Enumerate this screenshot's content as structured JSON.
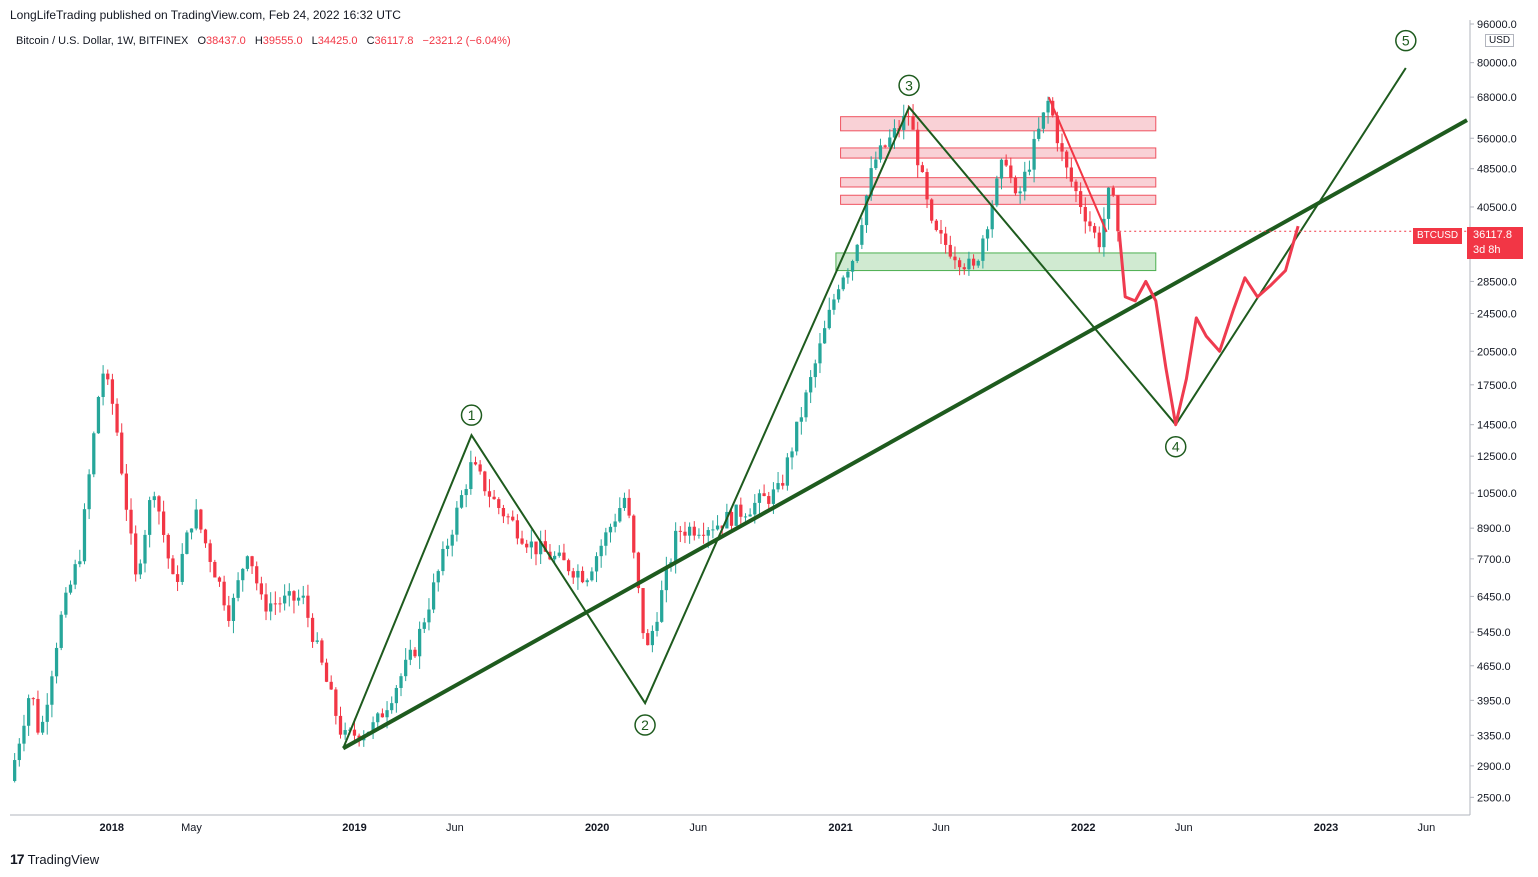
{
  "header": {
    "publisher": "LongLifeTrading published on TradingView.com, Feb 24, 2022 16:32 UTC",
    "symbol": "Bitcoin / U.S. Dollar, 1W, BITFINEX",
    "ohlc": {
      "O": "38437.0",
      "H": "39555.0",
      "L": "34425.0",
      "C": "36117.8"
    },
    "change": "−2321.2 (−6.04%)"
  },
  "footer": {
    "brand": "TradingView"
  },
  "badges": {
    "symbol": "BTCUSD",
    "price": "36117.8",
    "countdown": "3d 8h",
    "currency": "USD"
  },
  "colors": {
    "up": "#26a69a",
    "down": "#f23645",
    "wave": "#1e5b1e",
    "resist": "#f8c9cf",
    "support": "#c8e6c9",
    "projection": "#ef3b4f"
  },
  "chart_data": {
    "type": "candlestick",
    "title": "Bitcoin / U.S. Dollar, 1W, BITFINEX",
    "scale": "log",
    "ylim": [
      2300,
      96000
    ],
    "y_ticks": [
      96000,
      80000,
      68000,
      56000,
      48500,
      40500,
      28500,
      24500,
      20500,
      17500,
      14500,
      12500,
      10500,
      8900,
      7700,
      6450,
      5450,
      4650,
      3950,
      3350,
      2900,
      2500
    ],
    "y_tick_labels": [
      "96000.0",
      "80000.0",
      "68000.0",
      "56000.0",
      "48500.0",
      "40500.0",
      "28500.0",
      "24500.0",
      "20500.0",
      "17500.0",
      "14500.0",
      "12500.0",
      "10500.0",
      "8900.0",
      "7700.0",
      "6450.0",
      "5450.0",
      "4650.0",
      "3950.0",
      "3350.0",
      "2900.0",
      "2500.0"
    ],
    "x_range": [
      "2017-08-01",
      "2023-08-01"
    ],
    "x_ticks": [
      {
        "date": "2018-01-01",
        "label": "2018",
        "bold": true
      },
      {
        "date": "2018-05-01",
        "label": "May",
        "bold": false
      },
      {
        "date": "2019-01-01",
        "label": "2019",
        "bold": true
      },
      {
        "date": "2019-06-01",
        "label": "Jun",
        "bold": false
      },
      {
        "date": "2020-01-01",
        "label": "2020",
        "bold": true
      },
      {
        "date": "2020-06-01",
        "label": "Jun",
        "bold": false
      },
      {
        "date": "2021-01-01",
        "label": "2021",
        "bold": true
      },
      {
        "date": "2021-06-01",
        "label": "Jun",
        "bold": false
      },
      {
        "date": "2022-01-01",
        "label": "2022",
        "bold": true
      },
      {
        "date": "2022-06-01",
        "label": "Jun",
        "bold": false
      },
      {
        "date": "2023-01-01",
        "label": "2023",
        "bold": true
      },
      {
        "date": "2023-06-01",
        "label": "Jun",
        "bold": false
      }
    ],
    "close_path": [
      [
        "2017-08-01",
        2700
      ],
      [
        "2017-09-01",
        4200
      ],
      [
        "2017-09-15",
        3300
      ],
      [
        "2017-10-15",
        5700
      ],
      [
        "2017-11-15",
        8000
      ],
      [
        "2017-12-17",
        19000
      ],
      [
        "2018-01-05",
        15500
      ],
      [
        "2018-02-06",
        7000
      ],
      [
        "2018-03-05",
        11000
      ],
      [
        "2018-04-05",
        6700
      ],
      [
        "2018-05-05",
        9700
      ],
      [
        "2018-06-28",
        5900
      ],
      [
        "2018-07-25",
        8200
      ],
      [
        "2018-08-15",
        6200
      ],
      [
        "2018-10-15",
        6400
      ],
      [
        "2018-11-20",
        4300
      ],
      [
        "2018-12-15",
        3300
      ],
      [
        "2019-02-01",
        3500
      ],
      [
        "2019-04-01",
        5000
      ],
      [
        "2019-06-26",
        12000
      ],
      [
        "2019-08-01",
        10000
      ],
      [
        "2019-09-25",
        8200
      ],
      [
        "2019-12-15",
        7100
      ],
      [
        "2020-02-13",
        10400
      ],
      [
        "2020-03-15",
        4900
      ],
      [
        "2020-05-01",
        8800
      ],
      [
        "2020-07-01",
        9100
      ],
      [
        "2020-10-01",
        10600
      ],
      [
        "2020-12-31",
        29000
      ],
      [
        "2021-01-20",
        32000
      ],
      [
        "2021-02-20",
        50000
      ],
      [
        "2021-04-14",
        63000
      ],
      [
        "2021-05-19",
        36000
      ],
      [
        "2021-07-20",
        30000
      ],
      [
        "2021-09-06",
        52000
      ],
      [
        "2021-09-22",
        41000
      ],
      [
        "2021-11-10",
        67000
      ],
      [
        "2021-12-04",
        49000
      ],
      [
        "2022-01-24",
        34000
      ],
      [
        "2022-02-10",
        44000
      ],
      [
        "2022-02-24",
        36117.8
      ]
    ],
    "current_price": 36117.8,
    "wave_labels": [
      {
        "label": "1",
        "date": "2019-06-26",
        "value": 13800
      },
      {
        "label": "2",
        "date": "2020-03-13",
        "value": 3900
      },
      {
        "label": "3",
        "date": "2021-04-14",
        "value": 64800
      },
      {
        "label": "4",
        "date": "2022-05-20",
        "value": 14500
      },
      {
        "label": "5",
        "date": "2023-05-01",
        "value": 80000
      }
    ],
    "resistance_zones": [
      [
        58000,
        62000
      ],
      [
        51000,
        53500
      ],
      [
        44500,
        46500
      ],
      [
        41000,
        42800
      ]
    ],
    "support_zone": [
      30000,
      32600
    ]
  }
}
